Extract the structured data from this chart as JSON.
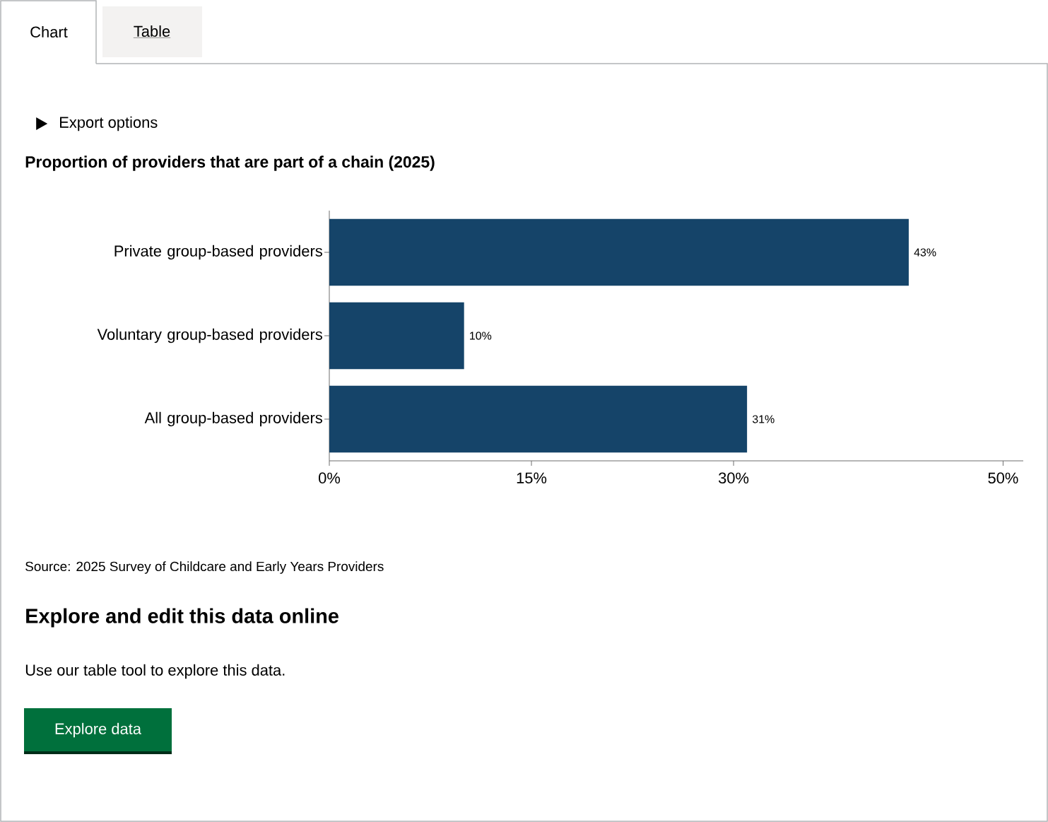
{
  "chart_data": {
    "type": "bar",
    "orientation": "horizontal",
    "title": "Proportion of providers that are part of a chain (2025)",
    "categories": [
      "Private group-based providers",
      "Voluntary group-based providers",
      "All group-based providers"
    ],
    "values": [
      43,
      10,
      31
    ],
    "value_labels": [
      "43%",
      "10%",
      "31%"
    ],
    "color": "#154469",
    "xlim": [
      0,
      51.5
    ],
    "xticks": [
      {
        "value": 0,
        "label": "0%"
      },
      {
        "value": 15,
        "label": "15%"
      },
      {
        "value": 30,
        "label": "30%"
      },
      {
        "value": 50,
        "label": "50%"
      }
    ],
    "grid": false,
    "annotations": [
      "Chart",
      "Table",
      "Export options",
      "Source: 2025 Survey of Childcare and Early Years Providers",
      "Explore and edit this data online",
      "Use our table tool to explore this data.",
      "Explore data"
    ]
  }
}
